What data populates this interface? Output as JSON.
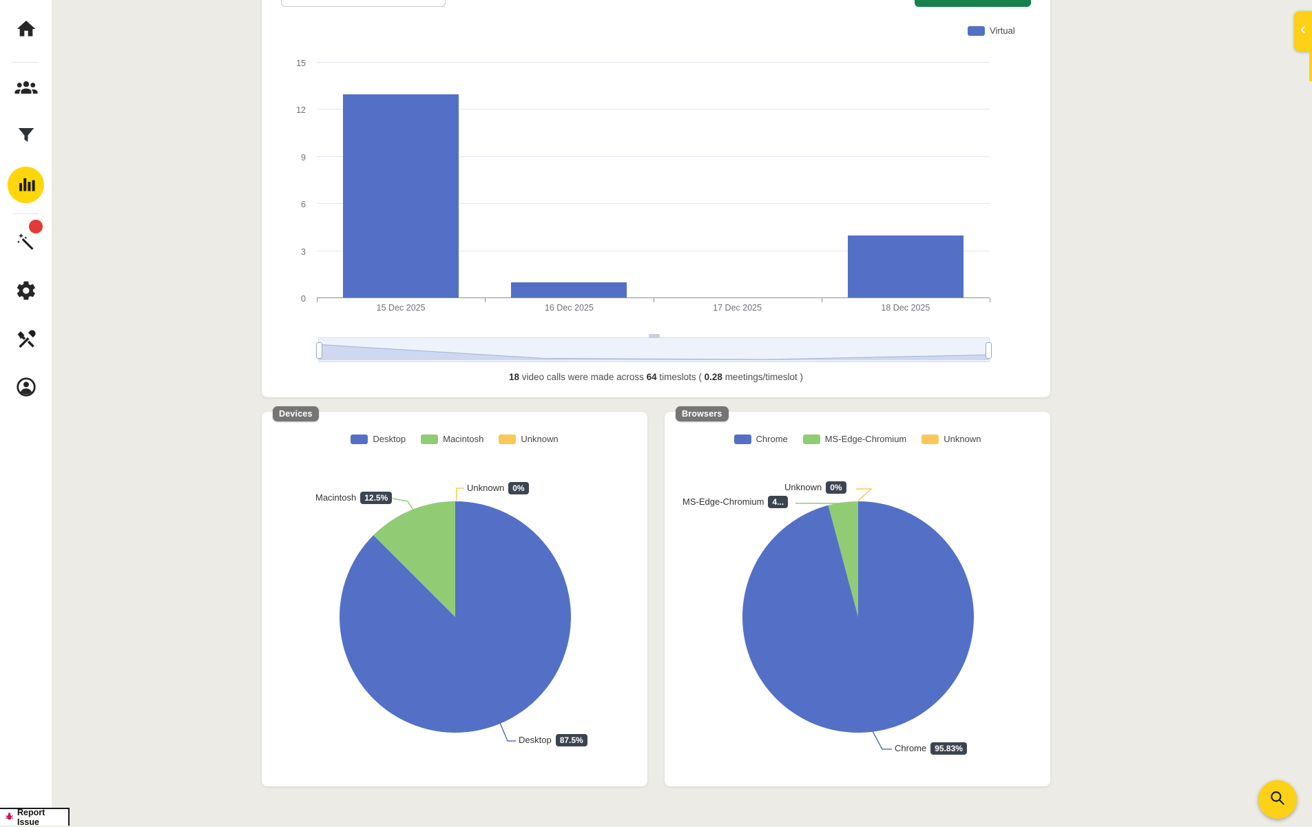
{
  "colors": {
    "series_blue": "#5470c6",
    "series_green": "#91cc75",
    "series_yellow": "#fac858",
    "button_green": "#17824c",
    "accent_yellow": "#fcd116",
    "sidebar_active_yellow": "#ffd60a",
    "notification_red": "#e53935",
    "card_badge_gray": "#757575",
    "pie_badge_dark": "#3d4451",
    "bug_pink": "#c2185b"
  },
  "sidebar": {
    "icons": [
      "home-icon",
      "users-icon",
      "filter-icon",
      "bar-chart-icon",
      "magic-wand-icon",
      "gear-icon",
      "tools-icon",
      "account-icon"
    ],
    "active_icon": "bar-chart-icon"
  },
  "main_chart": {
    "legend": {
      "label": "Virtual"
    },
    "caption": {
      "bold1": "18",
      "text1": " video calls were made across ",
      "bold2": "64",
      "text2": " timeslots ( ",
      "bold3": "0.28",
      "text3": " meetings/timeslot )"
    }
  },
  "devices": {
    "badge": "Devices",
    "legend": [
      {
        "label": "Desktop"
      },
      {
        "label": "Macintosh"
      },
      {
        "label": "Unknown"
      }
    ],
    "callouts": {
      "macintosh": {
        "name": "Macintosh",
        "value": "12.5%"
      },
      "unknown": {
        "name": "Unknown",
        "value": "0%"
      },
      "desktop": {
        "name": "Desktop",
        "value": "87.5%"
      }
    }
  },
  "browsers": {
    "badge": "Browsers",
    "legend": [
      {
        "label": "Chrome"
      },
      {
        "label": "MS-Edge-Chromium"
      },
      {
        "label": "Unknown"
      }
    ],
    "callouts": {
      "unknown": {
        "name": "Unknown",
        "value": "0%"
      },
      "msedge": {
        "name": "MS-Edge-Chromium",
        "value": "4..."
      },
      "chrome": {
        "name": "Chrome",
        "value": "95.83%"
      }
    }
  },
  "report_issue": {
    "label": "Report Issue"
  },
  "chart_data": [
    {
      "type": "bar",
      "title": "",
      "categories": [
        "15 Dec 2025",
        "16 Dec 2025",
        "17 Dec 2025",
        "18 Dec 2025"
      ],
      "series": [
        {
          "name": "Virtual",
          "values": [
            13,
            1,
            0,
            4
          ]
        }
      ],
      "ylim": [
        0,
        15
      ],
      "yticks": [
        0,
        3,
        6,
        9,
        12,
        15
      ],
      "grid": true,
      "legend_position": "top-right",
      "has_datazoom_slider": true
    },
    {
      "type": "pie",
      "title": "Devices",
      "labels": [
        "Desktop",
        "Macintosh",
        "Unknown"
      ],
      "values": [
        87.5,
        12.5,
        0
      ],
      "unit": "%",
      "legend_position": "top"
    },
    {
      "type": "pie",
      "title": "Browsers",
      "labels": [
        "Chrome",
        "MS-Edge-Chromium",
        "Unknown"
      ],
      "values": [
        95.83,
        4.17,
        0
      ],
      "unit": "%",
      "legend_position": "top"
    }
  ]
}
